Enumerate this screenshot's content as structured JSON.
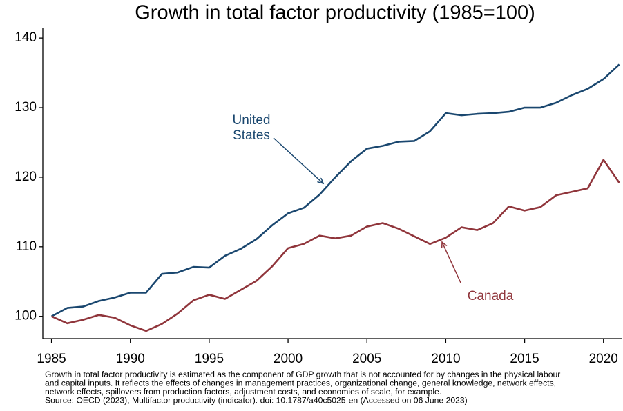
{
  "chart_data": {
    "type": "line",
    "title": "Growth in total factor productivity (1985=100)",
    "x": [
      1985,
      1986,
      1987,
      1988,
      1989,
      1990,
      1991,
      1992,
      1993,
      1994,
      1995,
      1996,
      1997,
      1998,
      1999,
      2000,
      2001,
      2002,
      2003,
      2004,
      2005,
      2006,
      2007,
      2008,
      2009,
      2010,
      2011,
      2012,
      2013,
      2014,
      2015,
      2016,
      2017,
      2018,
      2019,
      2020,
      2021
    ],
    "series": [
      {
        "name": "United States",
        "color": "#1a476f",
        "values": [
          100,
          101.2,
          101.4,
          102.2,
          102.7,
          103.4,
          103.4,
          106.1,
          106.3,
          107.1,
          107.0,
          108.7,
          109.7,
          111.1,
          113.1,
          114.8,
          115.6,
          117.5,
          120.0,
          122.3,
          124.1,
          124.5,
          125.1,
          125.2,
          126.6,
          129.2,
          128.9,
          129.1,
          129.2,
          129.4,
          130.0,
          130.0,
          130.7,
          131.8,
          132.7,
          134.1,
          136.2
        ]
      },
      {
        "name": "Canada",
        "color": "#90353b",
        "values": [
          100,
          99.0,
          99.5,
          100.2,
          99.8,
          98.7,
          97.9,
          98.9,
          100.4,
          102.3,
          103.1,
          102.5,
          103.8,
          105.1,
          107.2,
          109.8,
          110.4,
          111.6,
          111.2,
          111.6,
          112.9,
          113.4,
          112.6,
          111.5,
          110.4,
          111.3,
          112.8,
          112.4,
          113.4,
          115.8,
          115.2,
          115.7,
          117.4,
          117.9,
          118.4,
          122.5,
          119.2
        ]
      }
    ],
    "annotations": [
      [
        "United",
        "States"
      ],
      [
        "Canada"
      ]
    ],
    "xlim": [
      1984.45,
      2021.15
    ],
    "ylim": [
      96.8,
      141.5
    ],
    "xticks": [
      1985,
      1990,
      1995,
      2000,
      2005,
      2010,
      2015,
      2020
    ],
    "yticks": [
      100,
      110,
      120,
      130,
      140
    ],
    "grid": false,
    "footnote": [
      "Growth in total factor productivity is estimated as the component of GDP growth that is not accounted for by changes in the physical labour",
      "and capital inputs. It reflects the effects of changes in management practices, organizational change, general knowledge, network effects,",
      "network effects, spillovers from production factors, adjustment costs, and economies of scale, for example.",
      "Source: OECD (2023), Multifactor productivity (indicator). doi: 10.1787/a40c5025-en (Accessed on 06 June 2023)"
    ]
  }
}
